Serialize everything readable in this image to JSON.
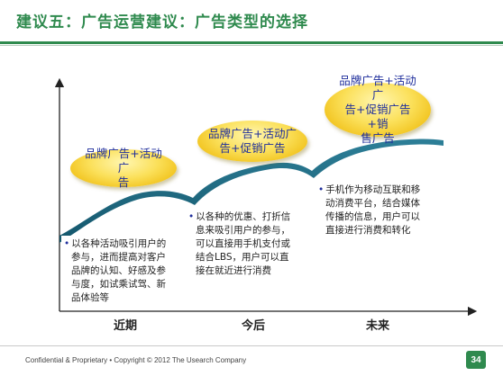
{
  "slide": {
    "title": "建议五：广告运营建议：广告类型的选择"
  },
  "stages": [
    {
      "label": "近期",
      "bubble": [
        "品牌广告+活动广",
        "告"
      ],
      "note": [
        "以各种活动吸引用户的",
        "参与，进而提高对客户",
        "品牌的认知、好感及参",
        "与度，如试乘试驾、新",
        "品体验等"
      ]
    },
    {
      "label": "今后",
      "bubble": [
        "品牌广告+活动广",
        "告+促销广告"
      ],
      "note": [
        "以各种的优惠、打折信",
        "息来吸引用户的参与，",
        "可以直接用手机支付或",
        "结合LBS，用户可以直",
        "接在就近进行消费"
      ]
    },
    {
      "label": "未来",
      "bubble": [
        "品牌广告+活动广",
        "告+促销广告+销",
        "售广告"
      ],
      "note": [
        "手机作为移动互联和移",
        "动消费平台，结合媒体",
        "传播的信息，用户可以",
        "直接进行消费和转化"
      ]
    }
  ],
  "footer": {
    "text": "Confidential & Proprietary • Copyright  © 2012 The Usearch Company",
    "page": "34"
  },
  "colors": {
    "accent": "#2f8a4e",
    "bubble": "#f6d232",
    "bubble_text": "#1f2e9c",
    "curve": "#1f6e86"
  }
}
